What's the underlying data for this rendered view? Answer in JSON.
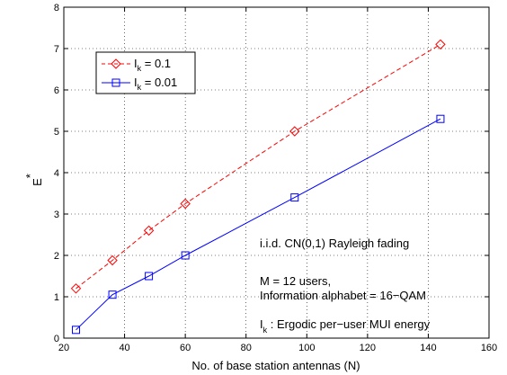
{
  "chart_data": {
    "type": "line",
    "title": "",
    "xlabel": "No. of base station antennas (N)",
    "ylabel": "E",
    "ylabel_superscript": "*",
    "xlim": [
      20,
      160
    ],
    "ylim": [
      0,
      8
    ],
    "xticks": [
      20,
      40,
      60,
      80,
      100,
      120,
      140,
      160
    ],
    "yticks": [
      0,
      1,
      2,
      3,
      4,
      5,
      6,
      7,
      8
    ],
    "grid": true,
    "legend_position": "top-left",
    "series": [
      {
        "name_main": "I",
        "name_sub": "k",
        "name_rest": " = 0.1",
        "color": "#ff0000",
        "dash": "dashed",
        "marker": "diamond",
        "x": [
          24,
          36,
          48,
          60,
          96,
          144
        ],
        "y": [
          1.2,
          1.88,
          2.6,
          3.25,
          5.0,
          7.1
        ]
      },
      {
        "name_main": "I",
        "name_sub": "k",
        "name_rest": " = 0.01",
        "color": "#0000ff",
        "dash": "solid",
        "marker": "square",
        "x": [
          24,
          36,
          48,
          60,
          96,
          144
        ],
        "y": [
          0.2,
          1.05,
          1.5,
          2.0,
          3.4,
          5.3
        ]
      }
    ],
    "annotations": {
      "line1": "i.i.d. CN(0,1) Rayleigh fading",
      "line2": "M = 12 users,",
      "line3": "Information alphabet = 16−QAM",
      "line4_main": "I",
      "line4_sub": "k",
      "line4_rest": " : Ergodic per−user MUI energy"
    }
  }
}
